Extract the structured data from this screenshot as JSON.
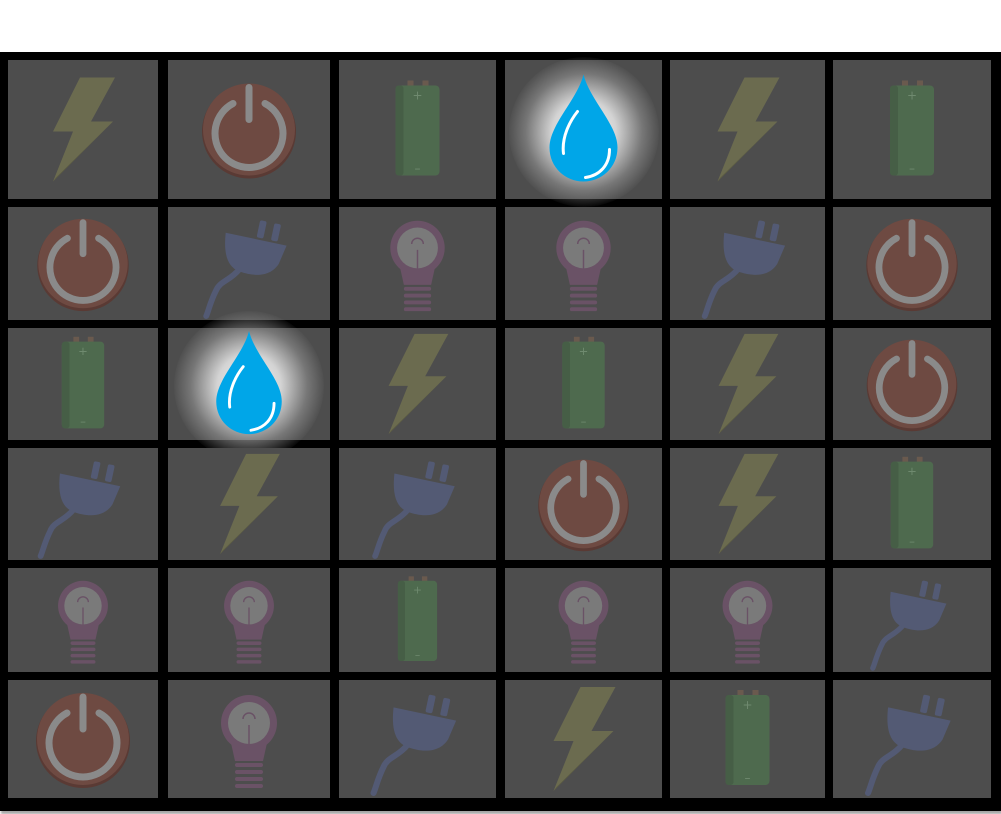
{
  "board": {
    "rows": 6,
    "cols": 6,
    "grid": [
      [
        "lightning",
        "power",
        "battery",
        "water",
        "lightning",
        "battery"
      ],
      [
        "power",
        "plug",
        "bulb",
        "bulb",
        "plug",
        "power"
      ],
      [
        "battery",
        "water",
        "lightning",
        "battery",
        "lightning",
        "power"
      ],
      [
        "plug",
        "lightning",
        "plug",
        "power",
        "lightning",
        "battery"
      ],
      [
        "bulb",
        "bulb",
        "battery",
        "bulb",
        "bulb",
        "plug"
      ],
      [
        "power",
        "bulb",
        "plug",
        "lightning",
        "battery",
        "plug"
      ]
    ],
    "highlighted": [
      "water"
    ]
  },
  "icons": {
    "lightning": {
      "name": "lightning-bolt-icon",
      "color": "#6b6b4f"
    },
    "power": {
      "name": "power-button-icon",
      "color": "#6e4a42",
      "ring": "#8a8a8a"
    },
    "battery": {
      "name": "battery-icon",
      "color": "#4e6a4e",
      "cap": "#6a5a4e"
    },
    "water": {
      "name": "water-drop-icon",
      "color": "#00a6e8",
      "glow": "#ffffff"
    },
    "plug": {
      "name": "plug-icon",
      "color": "#535a74"
    },
    "bulb": {
      "name": "light-bulb-icon",
      "color": "#6a5266",
      "inner": "#7a7a7a"
    }
  },
  "colors": {
    "tile": "#4d4d4d",
    "grid_line": "#000000",
    "background": "#ffffff"
  }
}
